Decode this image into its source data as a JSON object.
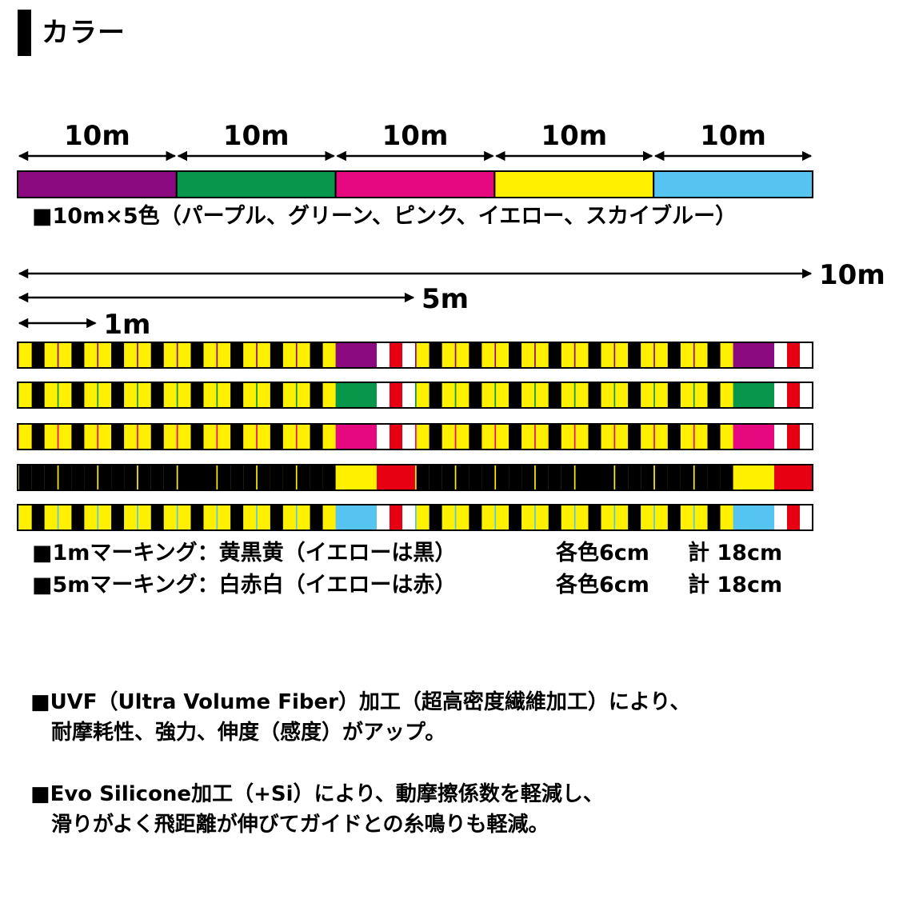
{
  "title": "カラー",
  "colors": {
    "purple": "#8B0A7F",
    "green": "#07964A",
    "pink": "#E5087F",
    "yellow": "#FFF000",
    "skyblue": "#55C4F0",
    "black": "#000000",
    "white": "#FFFFFF",
    "red": "#E60012"
  },
  "section_lengths": [
    "10m",
    "10m",
    "10m",
    "10m",
    "10m"
  ],
  "color_order": [
    "purple",
    "green",
    "pink",
    "yellow",
    "skyblue"
  ],
  "color_note": "■10m×5色（パープル、グリーン、ピンク、イエロー、スカイブルー）",
  "scale_labels": {
    "ten": "10m",
    "five": "5m",
    "one": "1m"
  },
  "marking": {
    "interval_m": 1,
    "five_m_position": 5,
    "line_length_m": 10,
    "mark_segment_cm": 6,
    "one_m_pattern": [
      "yellow",
      "black",
      "yellow"
    ],
    "one_m_pattern_on_yellow": [
      "black",
      "black",
      "black"
    ],
    "five_m_pattern": [
      "white",
      "red",
      "white"
    ],
    "five_m_pattern_on_yellow": [
      "red",
      "red",
      "red"
    ]
  },
  "marking_notes": [
    {
      "label": "■1mマーキング：黄黒黄（イエローは黒）",
      "each": "各色6cm",
      "total": "計 18cm"
    },
    {
      "label": "■5mマーキング：白赤白（イエローは赤）",
      "each": "各色6cm",
      "total": "計 18cm"
    }
  ],
  "features": [
    {
      "line1": "■UVF（Ultra Volume Fiber）加工（超高密度繊維加工）により、",
      "line2": "耐摩耗性、強力、伸度（感度）がアップ。"
    },
    {
      "line1": "■Evo Silicone加工（+Si）により、動摩擦係数を軽減し、",
      "line2": "滑りがよく飛距離が伸びてガイドとの糸鳴りも軽減。"
    }
  ]
}
